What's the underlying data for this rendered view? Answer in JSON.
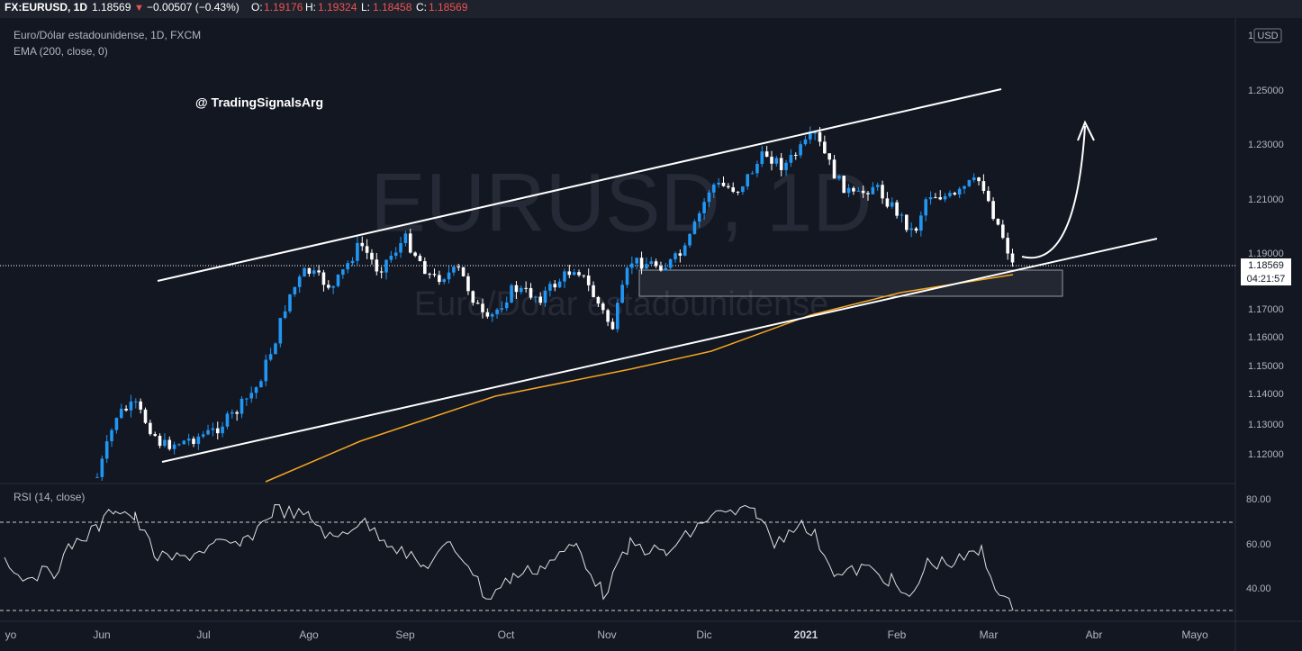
{
  "header": {
    "symbol": "FX:EURUSD, 1D",
    "last": "1.18569",
    "arrow": "▼",
    "change": "−0.00507 (−0.43%)",
    "o_label": "O:",
    "o": "1.19176",
    "h_label": "H:",
    "h": "1.19324",
    "l_label": "L:",
    "l": "1.18458",
    "c_label": "C:",
    "c": "1.18569"
  },
  "legend": {
    "instrument": "Euro/Dólar estadounidense, 1D, FXCM",
    "ema": "EMA (200, close, 0)"
  },
  "watermark": {
    "big": "EURUSD, 1D",
    "small": "Euro/Dólar estadounidense"
  },
  "signature": "@ TradingSignalsArg",
  "price_axis": {
    "currency": "USD",
    "labels": [
      "1.25000",
      "1.23000",
      "1.21000",
      "1.19000",
      "1.17000",
      "1.16000",
      "1.15000",
      "1.14000",
      "1.13000",
      "1.12000"
    ],
    "current": "1.18569",
    "countdown": "04:21:57"
  },
  "rsi": {
    "title": "RSI (14, close)",
    "labels": [
      "80.00",
      "60.00",
      "40.00"
    ]
  },
  "time_axis": [
    "yo",
    "Jun",
    "Jul",
    "Ago",
    "Sep",
    "Oct",
    "Nov",
    "Dic",
    "2021",
    "Feb",
    "Mar",
    "Abr",
    "Mayo"
  ]
}
